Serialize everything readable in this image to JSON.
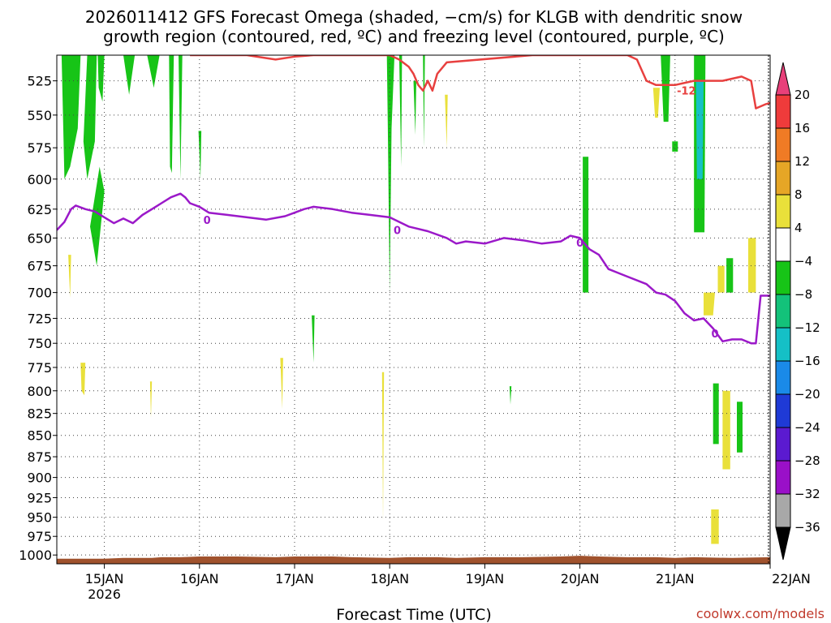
{
  "chart_data": {
    "type": "heatmap",
    "title_line1": "2026011412 GFS Forecast Omega (shaded, −cm/s) for KLGB with dendritic snow",
    "title_line2": "growth region (contoured, red, ºC) and freezing level (contoured, purple, ºC)",
    "xlabel": "Forecast Time (UTC)",
    "credit": "coolwx.com/models",
    "x_ticks": [
      {
        "day": 15,
        "label": "15JAN",
        "sub": "2026"
      },
      {
        "day": 16,
        "label": "16JAN",
        "sub": ""
      },
      {
        "day": 17,
        "label": "17JAN",
        "sub": ""
      },
      {
        "day": 18,
        "label": "18JAN",
        "sub": ""
      },
      {
        "day": 19,
        "label": "19JAN",
        "sub": ""
      },
      {
        "day": 20,
        "label": "20JAN",
        "sub": ""
      },
      {
        "day": 21,
        "label": "21JAN",
        "sub": ""
      },
      {
        "day": 22,
        "label": "22JAN",
        "sub": ""
      }
    ],
    "xlim": [
      14.5,
      22.0
    ],
    "y_ticks": [
      525,
      550,
      575,
      600,
      625,
      650,
      675,
      700,
      725,
      750,
      775,
      800,
      825,
      850,
      875,
      900,
      925,
      950,
      975,
      1000
    ],
    "ylim": [
      1012,
      507
    ],
    "y_scale": "log-pressure",
    "colorbar": {
      "labels": [
        "20",
        "16",
        "12",
        "8",
        "4",
        "−4",
        "−8",
        "−12",
        "−16",
        "−20",
        "−24",
        "−28",
        "−32",
        "−36"
      ],
      "colors": [
        "#e8407a",
        "#ef3b3b",
        "#f07b25",
        "#e6a626",
        "#e9e03a",
        "#ffffff",
        "#17c417",
        "#13c27a",
        "#15c0c6",
        "#1a8ae8",
        "#1f3ad6",
        "#5b1ad0",
        "#9a10c8",
        "#a8a8a8",
        "#000000"
      ]
    },
    "omega_regions": [
      {
        "color": "#17c417",
        "poly": [
          [
            14.55,
            507
          ],
          [
            14.75,
            507
          ],
          [
            14.72,
            560
          ],
          [
            14.64,
            590
          ],
          [
            14.58,
            600
          ]
        ]
      },
      {
        "color": "#17c417",
        "poly": [
          [
            14.82,
            507
          ],
          [
            14.92,
            507
          ],
          [
            14.9,
            570
          ],
          [
            14.82,
            600
          ],
          [
            14.78,
            570
          ]
        ]
      },
      {
        "color": "#17c417",
        "poly": [
          [
            14.93,
            507
          ],
          [
            15.0,
            507
          ],
          [
            14.98,
            540
          ],
          [
            14.94,
            530
          ]
        ]
      },
      {
        "color": "#17c417",
        "poly": [
          [
            14.95,
            590
          ],
          [
            15.0,
            610
          ],
          [
            14.92,
            675
          ],
          [
            14.85,
            640
          ]
        ]
      },
      {
        "color": "#17c417",
        "poly": [
          [
            15.2,
            507
          ],
          [
            15.32,
            507
          ],
          [
            15.26,
            535
          ]
        ]
      },
      {
        "color": "#17c417",
        "poly": [
          [
            15.45,
            507
          ],
          [
            15.58,
            507
          ],
          [
            15.52,
            530
          ]
        ]
      },
      {
        "color": "#17c417",
        "poly": [
          [
            15.68,
            507
          ],
          [
            15.73,
            507
          ],
          [
            15.71,
            595
          ],
          [
            15.69,
            590
          ]
        ]
      },
      {
        "color": "#17c417",
        "poly": [
          [
            15.78,
            507
          ],
          [
            15.82,
            507
          ],
          [
            15.8,
            600
          ]
        ]
      },
      {
        "color": "#17c417",
        "poly": [
          [
            15.99,
            562
          ],
          [
            16.02,
            562
          ],
          [
            16.01,
            600
          ]
        ]
      },
      {
        "color": "#17c417",
        "poly": [
          [
            17.97,
            507
          ],
          [
            18.05,
            507
          ],
          [
            18.02,
            560
          ],
          [
            18.0,
            700
          ],
          [
            17.98,
            560
          ]
        ]
      },
      {
        "color": "#17c417",
        "poly": [
          [
            18.1,
            507
          ],
          [
            18.13,
            507
          ],
          [
            18.12,
            590
          ]
        ]
      },
      {
        "color": "#17c417",
        "poly": [
          [
            18.25,
            525
          ],
          [
            18.28,
            525
          ],
          [
            18.27,
            565
          ]
        ]
      },
      {
        "color": "#17c417",
        "poly": [
          [
            18.35,
            507
          ],
          [
            18.37,
            507
          ],
          [
            18.36,
            575
          ]
        ]
      },
      {
        "color": "#17c417",
        "poly": [
          [
            17.18,
            722
          ],
          [
            17.21,
            722
          ],
          [
            17.2,
            770
          ]
        ]
      },
      {
        "color": "#17c417",
        "poly": [
          [
            20.03,
            582
          ],
          [
            20.09,
            582
          ],
          [
            20.09,
            700
          ],
          [
            20.03,
            700
          ]
        ]
      },
      {
        "color": "#17c417",
        "poly": [
          [
            20.85,
            507
          ],
          [
            20.95,
            507
          ],
          [
            20.93,
            555
          ],
          [
            20.88,
            555
          ]
        ]
      },
      {
        "color": "#17c417",
        "poly": [
          [
            20.97,
            570
          ],
          [
            21.03,
            570
          ],
          [
            21.03,
            578
          ],
          [
            20.97,
            578
          ]
        ]
      },
      {
        "color": "#17c417",
        "poly": [
          [
            21.2,
            507
          ],
          [
            21.32,
            507
          ],
          [
            21.31,
            645
          ],
          [
            21.2,
            645
          ]
        ]
      },
      {
        "color": "#15c0c6",
        "poly": [
          [
            21.22,
            525
          ],
          [
            21.3,
            525
          ],
          [
            21.29,
            600
          ],
          [
            21.23,
            600
          ]
        ]
      },
      {
        "color": "#17c417",
        "poly": [
          [
            21.54,
            668
          ],
          [
            21.61,
            668
          ],
          [
            21.61,
            700
          ],
          [
            21.54,
            700
          ]
        ]
      },
      {
        "color": "#17c417",
        "poly": [
          [
            21.4,
            792
          ],
          [
            21.46,
            792
          ],
          [
            21.46,
            860
          ],
          [
            21.4,
            860
          ]
        ]
      },
      {
        "color": "#17c417",
        "poly": [
          [
            21.65,
            812
          ],
          [
            21.71,
            812
          ],
          [
            21.71,
            870
          ],
          [
            21.65,
            870
          ]
        ]
      },
      {
        "color": "#17c417",
        "poly": [
          [
            19.26,
            795
          ],
          [
            19.28,
            795
          ],
          [
            19.27,
            815
          ]
        ]
      },
      {
        "color": "#e9e03a",
        "poly": [
          [
            20.77,
            530
          ],
          [
            20.84,
            530
          ],
          [
            20.82,
            552
          ],
          [
            20.79,
            552
          ]
        ]
      },
      {
        "color": "#e9e03a",
        "poly": [
          [
            21.45,
            675
          ],
          [
            21.52,
            675
          ],
          [
            21.52,
            700
          ],
          [
            21.45,
            700
          ]
        ]
      },
      {
        "color": "#e9e03a",
        "poly": [
          [
            21.3,
            700
          ],
          [
            21.42,
            700
          ],
          [
            21.4,
            722
          ],
          [
            21.3,
            722
          ]
        ]
      },
      {
        "color": "#e9e03a",
        "poly": [
          [
            21.77,
            650
          ],
          [
            21.85,
            650
          ],
          [
            21.85,
            700
          ],
          [
            21.77,
            700
          ]
        ]
      },
      {
        "color": "#e9e03a",
        "poly": [
          [
            21.5,
            800
          ],
          [
            21.58,
            800
          ],
          [
            21.58,
            890
          ],
          [
            21.5,
            890
          ]
        ]
      },
      {
        "color": "#e9e03a",
        "poly": [
          [
            21.38,
            940
          ],
          [
            21.46,
            940
          ],
          [
            21.46,
            985
          ],
          [
            21.38,
            985
          ]
        ]
      },
      {
        "color": "#e9e03a",
        "poly": [
          [
            14.75,
            770
          ],
          [
            14.8,
            770
          ],
          [
            14.79,
            805
          ],
          [
            14.76,
            800
          ]
        ]
      },
      {
        "color": "#e9e03a",
        "poly": [
          [
            14.62,
            665
          ],
          [
            14.65,
            665
          ],
          [
            14.64,
            705
          ]
        ]
      },
      {
        "color": "#e9e03a",
        "poly": [
          [
            16.85,
            765
          ],
          [
            16.88,
            765
          ],
          [
            16.87,
            820
          ]
        ]
      },
      {
        "color": "#e9e03a",
        "poly": [
          [
            15.48,
            790
          ],
          [
            15.5,
            790
          ],
          [
            15.49,
            830
          ]
        ]
      },
      {
        "color": "#e9e03a",
        "poly": [
          [
            17.92,
            780
          ],
          [
            17.94,
            780
          ],
          [
            17.93,
            955
          ]
        ]
      },
      {
        "color": "#e9e03a",
        "poly": [
          [
            18.58,
            535
          ],
          [
            18.61,
            535
          ],
          [
            18.6,
            575
          ]
        ]
      }
    ],
    "dgz_contour": {
      "label": "-12",
      "label_at": [
        21.12,
        532
      ],
      "points": [
        [
          15.9,
          507
        ],
        [
          16.0,
          507
        ],
        [
          16.5,
          507
        ],
        [
          16.8,
          510
        ],
        [
          17.0,
          508
        ],
        [
          17.2,
          507
        ],
        [
          18.0,
          507
        ],
        [
          18.1,
          510
        ],
        [
          18.2,
          515
        ],
        [
          18.25,
          520
        ],
        [
          18.3,
          528
        ],
        [
          18.35,
          532
        ],
        [
          18.4,
          525
        ],
        [
          18.45,
          532
        ],
        [
          18.5,
          520
        ],
        [
          18.6,
          512
        ],
        [
          19.5,
          507
        ],
        [
          20.3,
          507
        ],
        [
          20.5,
          507
        ],
        [
          20.6,
          510
        ],
        [
          20.7,
          525
        ],
        [
          20.8,
          528
        ],
        [
          20.85,
          528
        ],
        [
          20.9,
          528
        ],
        [
          21.0,
          528
        ],
        [
          21.2,
          525
        ],
        [
          21.5,
          525
        ],
        [
          21.7,
          522
        ],
        [
          21.8,
          525
        ],
        [
          21.85,
          545
        ],
        [
          21.95,
          542
        ],
        [
          22.0,
          541
        ]
      ]
    },
    "freezing_contour": {
      "label": "0",
      "label_points": [
        [
          16.08,
          634
        ],
        [
          18.08,
          643
        ],
        [
          20.0,
          654
        ],
        [
          21.42,
          740
        ]
      ],
      "points": [
        [
          14.5,
          643
        ],
        [
          14.58,
          636
        ],
        [
          14.65,
          625
        ],
        [
          14.7,
          622
        ],
        [
          14.8,
          625
        ],
        [
          14.9,
          627
        ],
        [
          15.0,
          632
        ],
        [
          15.1,
          637
        ],
        [
          15.2,
          633
        ],
        [
          15.3,
          637
        ],
        [
          15.4,
          630
        ],
        [
          15.5,
          625
        ],
        [
          15.6,
          620
        ],
        [
          15.7,
          615
        ],
        [
          15.8,
          612
        ],
        [
          15.85,
          615
        ],
        [
          15.9,
          620
        ],
        [
          16.0,
          623
        ],
        [
          16.1,
          628
        ],
        [
          16.3,
          630
        ],
        [
          16.5,
          632
        ],
        [
          16.7,
          634
        ],
        [
          16.9,
          631
        ],
        [
          17.0,
          628
        ],
        [
          17.1,
          625
        ],
        [
          17.2,
          623
        ],
        [
          17.4,
          625
        ],
        [
          17.6,
          628
        ],
        [
          17.8,
          630
        ],
        [
          18.0,
          632
        ],
        [
          18.2,
          640
        ],
        [
          18.4,
          644
        ],
        [
          18.6,
          650
        ],
        [
          18.7,
          655
        ],
        [
          18.8,
          653
        ],
        [
          19.0,
          655
        ],
        [
          19.2,
          650
        ],
        [
          19.4,
          652
        ],
        [
          19.6,
          655
        ],
        [
          19.8,
          653
        ],
        [
          19.9,
          648
        ],
        [
          20.0,
          650
        ],
        [
          20.1,
          660
        ],
        [
          20.2,
          665
        ],
        [
          20.3,
          678
        ],
        [
          20.5,
          685
        ],
        [
          20.7,
          692
        ],
        [
          20.8,
          700
        ],
        [
          20.9,
          702
        ],
        [
          21.0,
          708
        ],
        [
          21.1,
          720
        ],
        [
          21.2,
          727
        ],
        [
          21.3,
          725
        ],
        [
          21.4,
          735
        ],
        [
          21.5,
          748
        ],
        [
          21.6,
          746
        ],
        [
          21.7,
          746
        ],
        [
          21.8,
          750
        ],
        [
          21.85,
          750
        ],
        [
          21.9,
          703
        ],
        [
          22.0,
          703
        ]
      ]
    },
    "terrain": {
      "color": "#a0522d",
      "points": [
        [
          14.5,
          1005
        ],
        [
          15.0,
          1005
        ],
        [
          15.2,
          1004
        ],
        [
          15.5,
          1004
        ],
        [
          15.6,
          1003
        ],
        [
          15.8,
          1003
        ],
        [
          16.0,
          1002
        ],
        [
          16.4,
          1002
        ],
        [
          16.8,
          1003
        ],
        [
          17.0,
          1002
        ],
        [
          17.4,
          1002
        ],
        [
          17.6,
          1003
        ],
        [
          18.0,
          1004
        ],
        [
          18.2,
          1003
        ],
        [
          18.5,
          1003
        ],
        [
          18.7,
          1004
        ],
        [
          19.0,
          1003
        ],
        [
          19.4,
          1003
        ],
        [
          19.8,
          1002
        ],
        [
          20.0,
          1001
        ],
        [
          20.2,
          1002
        ],
        [
          20.5,
          1003
        ],
        [
          20.8,
          1003
        ],
        [
          21.0,
          1004
        ],
        [
          21.2,
          1003
        ],
        [
          21.6,
          1004
        ],
        [
          22.0,
          1003
        ]
      ]
    }
  }
}
